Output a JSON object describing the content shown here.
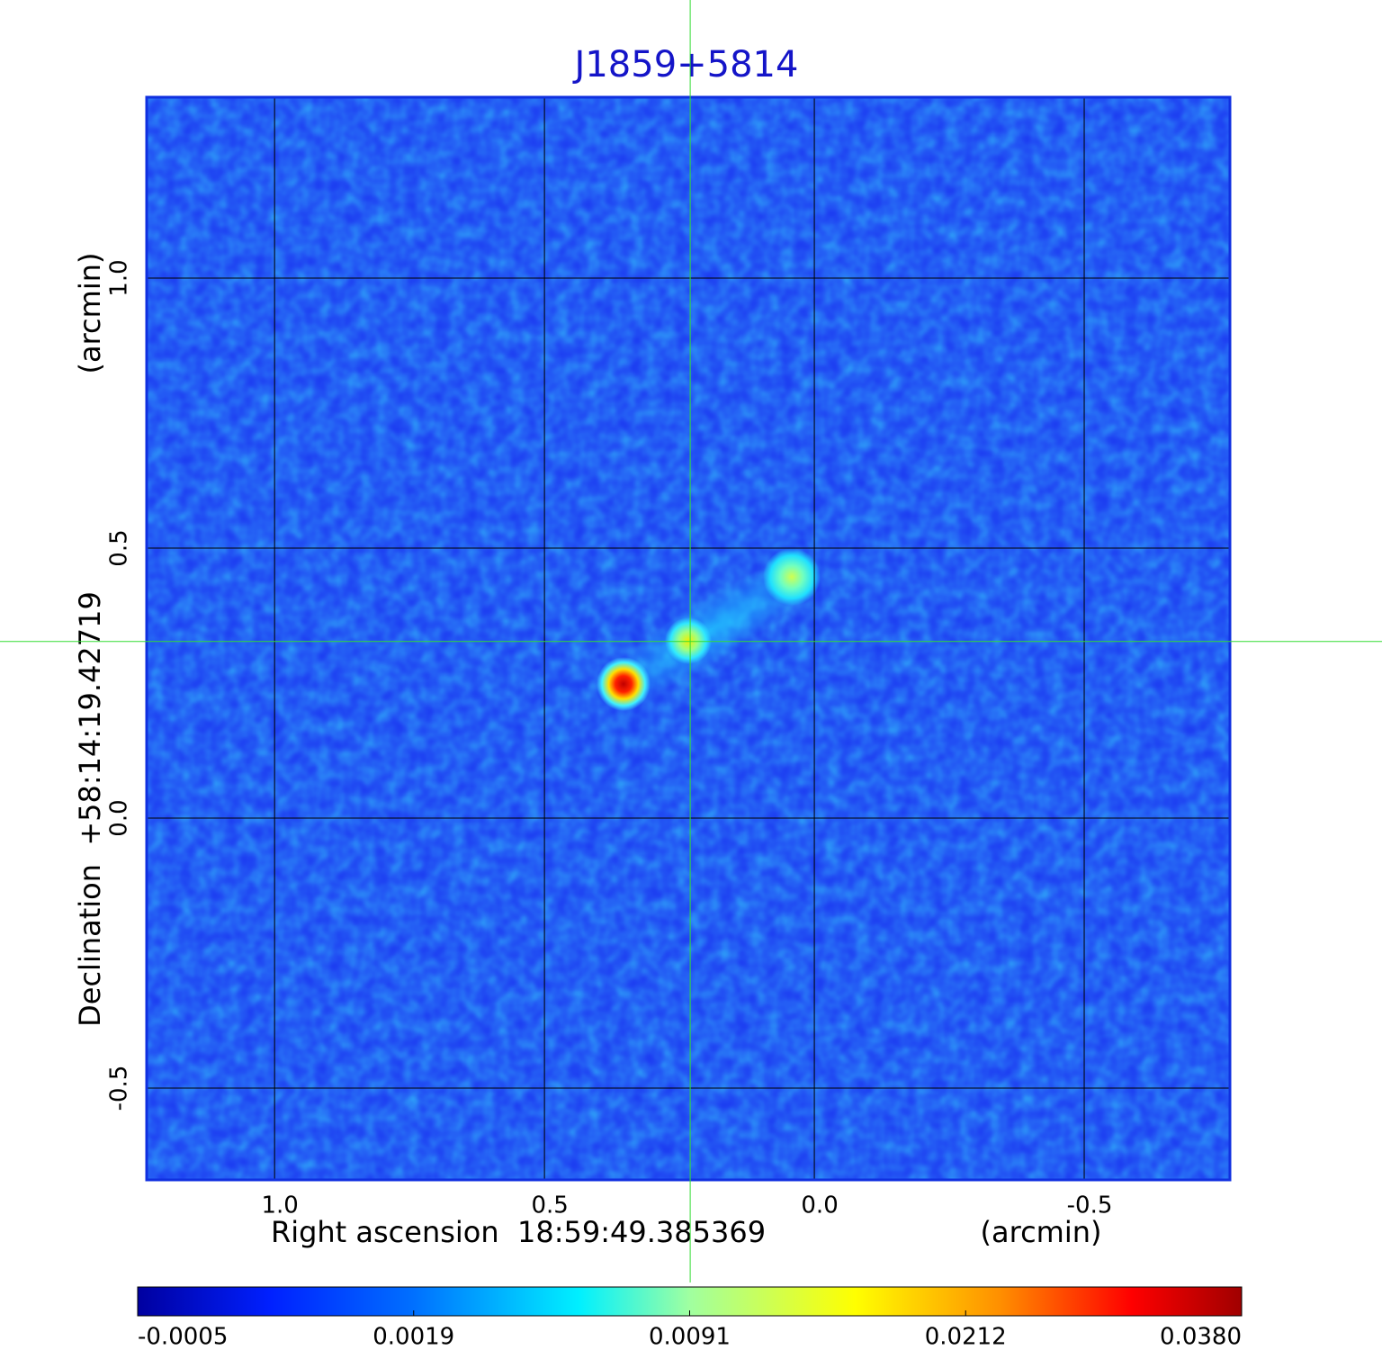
{
  "chart_data": {
    "type": "image",
    "title": "J1859+5814",
    "xlabel": "Right ascension  18:59:49.385369",
    "xunit": "(arcmin)",
    "ylabel": "Declination  +58:14:19.42719",
    "yunit": "(arcmin)",
    "xlim": [
      1.237,
      -0.77
    ],
    "xticks": [
      {
        "value": 1,
        "label": "1.0"
      },
      0.5,
      {
        "value": 0,
        "label": "0.0"
      },
      -0.5
    ],
    "ylim": [
      -0.67,
      1.335
    ],
    "yticks": [
      {
        "value": 1,
        "label": "1.0"
      },
      0.5,
      {
        "value": 0,
        "label": "0.0"
      },
      -0.5
    ],
    "grid": true,
    "crosshair": {
      "x": 0.23,
      "y": 0.327,
      "color": "#33dd33"
    },
    "colorbar": {
      "ticks": [
        -0.0005,
        0.0019,
        0.0091,
        0.0212,
        {
          "value": 0.038,
          "label": "0.0380"
        }
      ]
    }
  }
}
